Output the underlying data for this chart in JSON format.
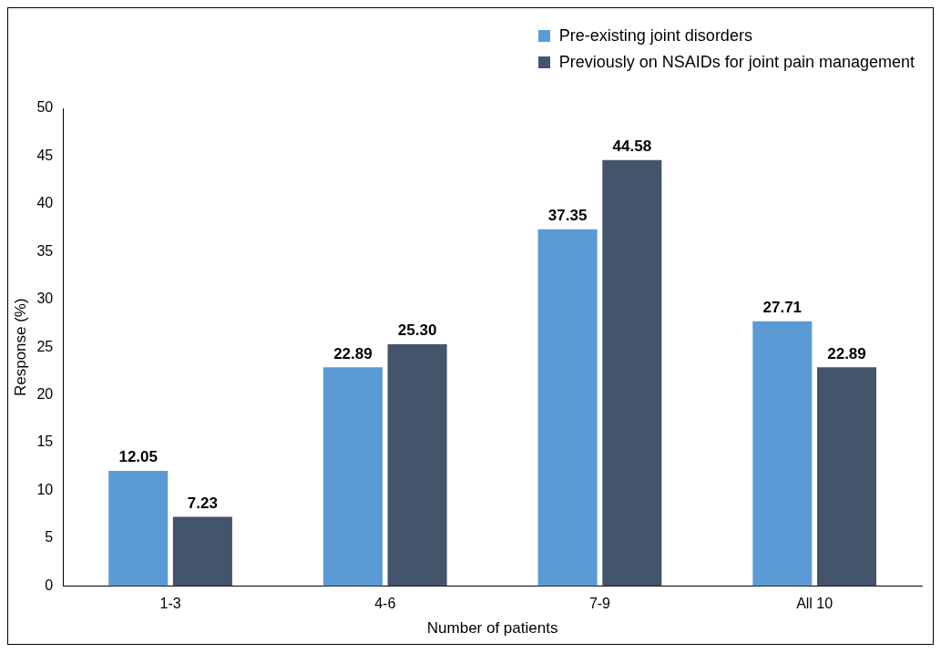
{
  "chart_data": {
    "type": "bar",
    "xlabel": "Number of patients",
    "ylabel": "Response (%)",
    "categories": [
      "1-3",
      "4-6",
      "7-9",
      "All 10"
    ],
    "series": [
      {
        "name": "Pre-existing joint disorders",
        "color": "#5b9bd5",
        "values": [
          12.05,
          22.89,
          37.35,
          27.71
        ],
        "value_labels": [
          "12.05",
          "22.89",
          "37.35",
          "27.71"
        ]
      },
      {
        "name": "Previously on NSAIDs for joint pain management",
        "color": "#44546a",
        "values": [
          7.23,
          25.3,
          44.58,
          22.89
        ],
        "value_labels": [
          "7.23",
          "25.30",
          "44.58",
          "22.89"
        ]
      }
    ],
    "ylim": [
      0,
      50
    ],
    "yticks": [
      0,
      5,
      10,
      15,
      20,
      25,
      30,
      35,
      40,
      45,
      50
    ],
    "grid": false,
    "legend": "top right"
  }
}
